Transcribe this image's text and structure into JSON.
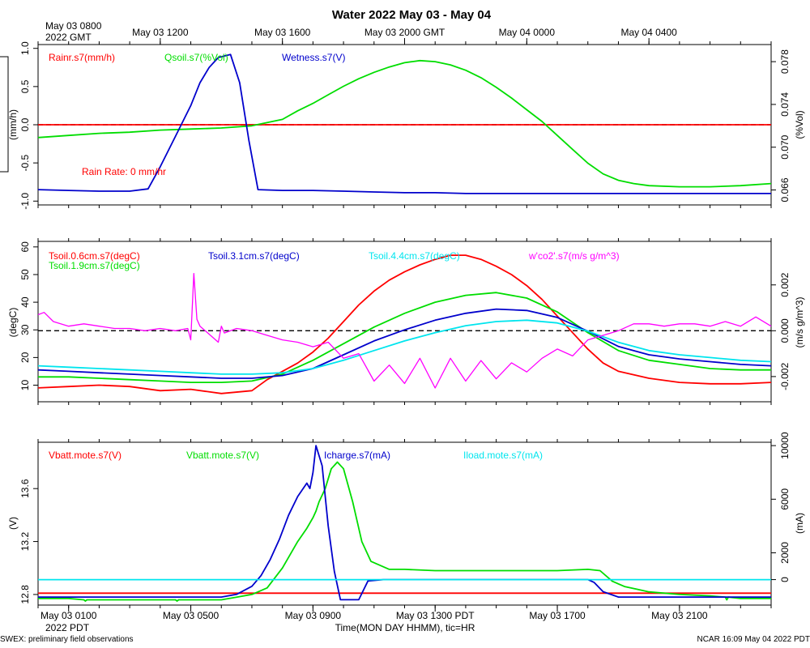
{
  "chart_data": [
    {
      "type": "line",
      "panel": "water",
      "title": "Water 2022 May 03 - May 04",
      "top_axis": {
        "start_label_line1": "May 03 0800",
        "start_label_line2": "2022 GMT",
        "ticks": [
          {
            "hour": 4,
            "label": "May 03 1200"
          },
          {
            "hour": 8,
            "label": "May 03 1600"
          },
          {
            "hour": 12,
            "label": "May 03 2000 GMT"
          },
          {
            "hour": 16,
            "label": "May 04 0000"
          },
          {
            "hour": 20,
            "label": "May 04 0400"
          }
        ]
      },
      "x_range_hours": [
        0,
        24
      ],
      "left_axis": {
        "label": "(mm/h)",
        "range": [
          -1.05,
          1.05
        ],
        "ticks": [
          "-1.0",
          "-0.5",
          "0.0",
          "0.5",
          "1.0"
        ]
      },
      "right_axis": {
        "label": "(%Vol)",
        "range": [
          0.0646,
          0.0796
        ],
        "ticks": [
          "0.066",
          "0.070",
          "0.074",
          "0.078"
        ]
      },
      "annotation": "Rain Rate: 0 mm/hr",
      "series": [
        {
          "name": "Rainr.s7(mm/h)",
          "color": "#ff0000",
          "axis": "left",
          "x": [
            0,
            24
          ],
          "y": [
            0,
            0
          ]
        },
        {
          "name": "Qsoil.s7(%Vol)",
          "color": "#00dd00",
          "axis": "right",
          "x": [
            0,
            1,
            2,
            3,
            4,
            5,
            6,
            7,
            8,
            8.5,
            9,
            9.5,
            10,
            10.5,
            11,
            11.5,
            12,
            12.5,
            13,
            13.5,
            14,
            14.5,
            15,
            15.5,
            16,
            16.5,
            17,
            17.5,
            18,
            18.5,
            19,
            19.5,
            20,
            21,
            22,
            23,
            24
          ],
          "y": [
            0.0709,
            0.0711,
            0.0713,
            0.0714,
            0.0716,
            0.0717,
            0.0718,
            0.072,
            0.0726,
            0.0734,
            0.0741,
            0.0749,
            0.0757,
            0.0764,
            0.077,
            0.0775,
            0.0779,
            0.0781,
            0.078,
            0.0777,
            0.0772,
            0.0765,
            0.0756,
            0.0746,
            0.0735,
            0.0724,
            0.0711,
            0.0698,
            0.0685,
            0.0675,
            0.0669,
            0.0666,
            0.0664,
            0.0663,
            0.0663,
            0.0664,
            0.0666
          ]
        },
        {
          "name": "Wetness.s7(V)",
          "color": "#0000cc",
          "axis": "left",
          "x": [
            0,
            1,
            2,
            3,
            3.6,
            4,
            4.5,
            5,
            5.3,
            5.6,
            5.9,
            6.3,
            6.6,
            6.9,
            7.2,
            8,
            9,
            10,
            11,
            12,
            13,
            14,
            15,
            16,
            17,
            18,
            19,
            20,
            21,
            22,
            23,
            24
          ],
          "y": [
            -0.85,
            -0.86,
            -0.87,
            -0.87,
            -0.84,
            -0.55,
            -0.15,
            0.25,
            0.55,
            0.75,
            0.88,
            0.92,
            0.55,
            -0.2,
            -0.85,
            -0.86,
            -0.86,
            -0.87,
            -0.88,
            -0.89,
            -0.89,
            -0.9,
            -0.9,
            -0.9,
            -0.9,
            -0.9,
            -0.9,
            -0.9,
            -0.9,
            -0.9,
            -0.9,
            -0.9
          ]
        }
      ]
    },
    {
      "type": "line",
      "panel": "soil temperature",
      "x_range_hours": [
        0,
        24
      ],
      "left_axis": {
        "label": "(degC)",
        "range": [
          4,
          62
        ],
        "ticks": [
          "10",
          "20",
          "30",
          "40",
          "50",
          "60"
        ]
      },
      "right_axis": {
        "label": "(m/s g/m^3)",
        "range": [
          -0.0031,
          0.0039
        ],
        "ticks": [
          "-0.002",
          "0.000",
          "0.002"
        ]
      },
      "series": [
        {
          "name": "Tsoil.0.6cm.s7(degC)",
          "color": "#ff0000",
          "axis": "left",
          "x": [
            0,
            1,
            2,
            3,
            4,
            5,
            6,
            7,
            7.5,
            8,
            8.5,
            9,
            9.5,
            10,
            10.5,
            11,
            11.5,
            12,
            12.5,
            13,
            13.5,
            14,
            14.5,
            15,
            15.5,
            16,
            16.5,
            17,
            17.5,
            18,
            18.5,
            19,
            20,
            21,
            22,
            23,
            24
          ],
          "y": [
            9,
            9.5,
            10,
            9.5,
            8,
            8.5,
            7,
            8,
            12,
            15,
            18,
            22,
            27,
            33,
            39,
            44,
            48,
            51,
            53.5,
            55.5,
            57,
            57,
            55.5,
            53,
            50,
            46,
            41,
            35,
            29,
            23,
            18,
            15,
            12.5,
            11,
            10.5,
            10.5,
            11
          ]
        },
        {
          "name": "Tsoil.1.9cm.s7(degC)",
          "color": "#00dd00",
          "axis": "left",
          "x": [
            0,
            1,
            2,
            3,
            4,
            5,
            6,
            7,
            8,
            9,
            10,
            11,
            12,
            13,
            14,
            15,
            16,
            17,
            18,
            19,
            20,
            21,
            22,
            23,
            24
          ],
          "y": [
            13,
            13,
            12.5,
            12,
            11.5,
            11,
            11,
            11.5,
            14,
            19,
            25,
            31,
            36,
            40,
            42.5,
            43.5,
            41.5,
            36.5,
            29,
            22.5,
            19,
            17.5,
            16,
            15.5,
            15.5
          ]
        },
        {
          "name": "Tsoil.3.1cm.s7(degC)",
          "color": "#0000cc",
          "axis": "left",
          "x": [
            0,
            1,
            2,
            3,
            4,
            5,
            6,
            7,
            8,
            9,
            10,
            11,
            12,
            13,
            14,
            15,
            16,
            17,
            18,
            19,
            20,
            21,
            22,
            23,
            24
          ],
          "y": [
            15.5,
            15,
            14.5,
            14,
            13.5,
            13,
            12.5,
            12.5,
            13.5,
            16,
            21,
            26,
            30,
            33.5,
            36,
            37.5,
            37,
            34.5,
            29.5,
            24,
            21,
            19.5,
            18.5,
            17.5,
            17
          ]
        },
        {
          "name": "Tsoil.4.4cm.s7(degC)",
          "color": "#00e5ee",
          "axis": "left",
          "x": [
            0,
            1,
            2,
            3,
            4,
            5,
            6,
            7,
            8,
            9,
            10,
            11,
            12,
            13,
            14,
            15,
            16,
            17,
            18,
            19,
            20,
            21,
            22,
            23,
            24
          ],
          "y": [
            17,
            16.5,
            16,
            15.5,
            15,
            14.5,
            14,
            14,
            14.5,
            16,
            19,
            22.5,
            26,
            29,
            31.5,
            33,
            33.5,
            32.5,
            29.5,
            25.5,
            22.5,
            21,
            20,
            19,
            18.5
          ]
        },
        {
          "name": "w'co2'.s7(m/s g/m^3)",
          "color": "#ff00ff",
          "axis": "right",
          "x": [
            0,
            0.2,
            0.5,
            1,
            1.5,
            2,
            2.5,
            3,
            3.5,
            4,
            4.5,
            4.9,
            5.0,
            5.1,
            5.2,
            5.3,
            5.9,
            6,
            6.1,
            6.5,
            7,
            7.5,
            8,
            8.5,
            9,
            9.5,
            10,
            10.5,
            11,
            11.5,
            12,
            12.5,
            13,
            13.5,
            14,
            14.5,
            15,
            15.5,
            16,
            16.5,
            17,
            17.5,
            18,
            18.5,
            19,
            19.5,
            20,
            20.5,
            21,
            21.5,
            22,
            22.5,
            23,
            23.5,
            24
          ],
          "y": [
            0.0007,
            0.0008,
            0.0004,
            0.0002,
            0.0003,
            0.0002,
            0.0001,
            0.0001,
            0.0,
            0.0001,
            0.0,
            0.0001,
            -0.0004,
            0.0025,
            0.0005,
            0.0002,
            -0.0005,
            0.0002,
            -0.0001,
            0.0001,
            0.0,
            -0.0002,
            -0.0004,
            -0.0005,
            -0.0007,
            -0.0005,
            -0.0012,
            -0.001,
            -0.0022,
            -0.0015,
            -0.0023,
            -0.0012,
            -0.0025,
            -0.0012,
            -0.0022,
            -0.0013,
            -0.0021,
            -0.0014,
            -0.0018,
            -0.0012,
            -0.0008,
            -0.0011,
            -0.0004,
            -0.0002,
            0.0,
            0.0003,
            0.0003,
            0.0002,
            0.0003,
            0.0003,
            0.0002,
            0.0004,
            0.0002,
            0.0006,
            0.0002
          ]
        }
      ]
    },
    {
      "type": "line",
      "panel": "mote power",
      "x_range_hours": [
        0,
        24
      ],
      "bottom_axis": {
        "ticks": [
          {
            "hour": 1,
            "label": "May 03 0100"
          },
          {
            "hour": 5,
            "label": "May 03 0500"
          },
          {
            "hour": 9,
            "label": "May 03 0900"
          },
          {
            "hour": 13,
            "label": "May 03 1300 PDT"
          },
          {
            "hour": 17,
            "label": "May 03 1700"
          },
          {
            "hour": 21,
            "label": "May 03 2100"
          }
        ],
        "start_label": "2022 PDT",
        "xlabel": "Time(MON DAY HHMM), tic=HR"
      },
      "left_axis": {
        "label": "(V)",
        "range": [
          12.72,
          13.95
        ],
        "ticks": [
          "12.8",
          "13.2",
          "13.6"
        ]
      },
      "right_axis": {
        "label": "(mA)",
        "range": [
          -1900,
          10250
        ],
        "ticks": [
          "0",
          "2000",
          "6000",
          "10000"
        ]
      },
      "series": [
        {
          "name": "Vbatt.mote.s7(V)",
          "color": "#ff0000",
          "axis": "left",
          "x": [
            0,
            24
          ],
          "y": [
            12.81,
            12.81
          ]
        },
        {
          "name": "Vbatt.mote.s7(V)",
          "color": "#00dd00",
          "axis": "left",
          "x": [
            0,
            1,
            1.5,
            1.55,
            1.6,
            2,
            3,
            4,
            4.5,
            4.55,
            4.6,
            5,
            6,
            6.5,
            7,
            7.5,
            8,
            8.5,
            8.8,
            9,
            9.1,
            9.2,
            9.4,
            9.6,
            9.8,
            10,
            10.3,
            10.6,
            10.9,
            11.5,
            12,
            13,
            14,
            15,
            16,
            17,
            18,
            18.4,
            18.8,
            19.2,
            19.6,
            20,
            21,
            22,
            22.5,
            22.55,
            22.6,
            23,
            24
          ],
          "y": [
            12.77,
            12.77,
            12.76,
            12.75,
            12.76,
            12.76,
            12.76,
            12.76,
            12.76,
            12.75,
            12.76,
            12.76,
            12.76,
            12.78,
            12.8,
            12.85,
            13.0,
            13.2,
            13.3,
            13.38,
            13.43,
            13.5,
            13.6,
            13.75,
            13.8,
            13.75,
            13.5,
            13.2,
            13.05,
            12.99,
            12.99,
            12.98,
            12.98,
            12.98,
            12.98,
            12.98,
            12.99,
            12.98,
            12.9,
            12.86,
            12.84,
            12.82,
            12.8,
            12.79,
            12.78,
            12.76,
            12.78,
            12.77,
            12.77
          ]
        },
        {
          "name": "Icharge.s7(mA)",
          "color": "#0000cc",
          "axis": "right",
          "x": [
            0,
            4,
            6,
            6.5,
            7,
            7.3,
            7.6,
            7.9,
            8.2,
            8.5,
            8.8,
            8.9,
            9.0,
            9.1,
            9.3,
            9.5,
            9.7,
            9.9,
            10.2,
            10.5,
            10.8,
            11.3,
            12,
            15,
            18,
            18.2,
            18.5,
            19,
            24
          ],
          "y": [
            -1300,
            -1300,
            -1300,
            -1100,
            -500,
            300,
            1500,
            3000,
            4800,
            6200,
            7200,
            6800,
            8000,
            10000,
            8500,
            4000,
            600,
            -1500,
            -1500,
            -1500,
            -100,
            0,
            0,
            0,
            0,
            -200,
            -900,
            -1300,
            -1300
          ]
        },
        {
          "name": "Iload.mote.s7(mA)",
          "color": "#00e5ee",
          "axis": "right",
          "x": [
            0,
            24
          ],
          "y": [
            0,
            0
          ]
        }
      ]
    }
  ],
  "footer": {
    "left": "SWEX: preliminary field observations",
    "right": "NCAR 16:09 May 04 2022 PDT"
  }
}
